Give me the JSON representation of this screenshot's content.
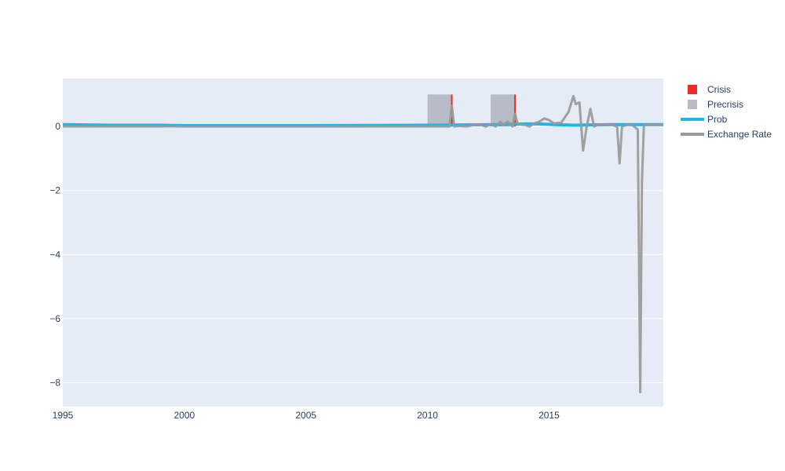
{
  "chart_data": {
    "type": "line",
    "title": "",
    "xlabel": "",
    "ylabel": "",
    "xlim": [
      1995.0,
      2019.7
    ],
    "ylim": [
      -8.75,
      1.5
    ],
    "x_ticks": [
      1995,
      2000,
      2005,
      2010,
      2015
    ],
    "y_ticks": [
      0,
      -2,
      -4,
      -6,
      -8
    ],
    "grid": true,
    "legend_position": "top-right",
    "colors": {
      "plot_background": "#e5ecf6",
      "grid": "#ffffff",
      "crisis": "#ee2a2a",
      "precrisis": "#b7bcc6",
      "prob": "#1eb5e8",
      "exchange_rate": "#999999",
      "tick_text": "#2a3f5f"
    },
    "legend": [
      {
        "label": "Crisis",
        "kind": "box",
        "series": "crisis"
      },
      {
        "label": "Precrisis",
        "kind": "box",
        "series": "precrisis"
      },
      {
        "label": "Prob",
        "kind": "line",
        "series": "prob"
      },
      {
        "label": "Exchange Rate",
        "kind": "line",
        "series": "exchange_rate"
      }
    ],
    "precrisis_periods": [
      {
        "start": 2010.0,
        "end": 2011.0,
        "value": 1.0
      },
      {
        "start": 2012.6,
        "end": 2013.6,
        "value": 1.0
      }
    ],
    "crisis_events": [
      {
        "x": 2011.0,
        "value": 1.0
      },
      {
        "x": 2013.6,
        "value": 1.0
      }
    ],
    "prob": {
      "x": [
        1995.0,
        1996.0,
        1997.0,
        1998.0,
        1999.0,
        2000.0,
        2005.0,
        2010.0,
        2013.0,
        2014.0,
        2014.6,
        2015.2,
        2016.0,
        2016.7,
        2017.5,
        2019.7
      ],
      "y": [
        0.06,
        0.05,
        0.04,
        0.04,
        0.04,
        0.03,
        0.03,
        0.04,
        0.06,
        0.08,
        0.08,
        0.06,
        0.04,
        0.05,
        0.06,
        0.06
      ]
    },
    "exchange_rate": {
      "x": [
        1995.0,
        1996.0,
        1997.0,
        1998.0,
        1999.0,
        1999.3,
        2000.0,
        2001.0,
        2003.0,
        2005.0,
        2007.0,
        2009.0,
        2010.0,
        2010.9,
        2011.0,
        2011.1,
        2011.3,
        2011.6,
        2011.9,
        2012.2,
        2012.4,
        2012.6,
        2012.8,
        2013.0,
        2013.1,
        2013.3,
        2013.5,
        2013.6,
        2013.7,
        2013.9,
        2014.0,
        2014.2,
        2014.4,
        2014.6,
        2014.8,
        2015.0,
        2015.2,
        2015.5,
        2015.8,
        2016.0,
        2016.1,
        2016.25,
        2016.4,
        2016.55,
        2016.7,
        2016.85,
        2017.0,
        2017.3,
        2017.6,
        2017.8,
        2017.9,
        2018.0,
        2018.2,
        2018.4,
        2018.5,
        2018.65,
        2018.75,
        2018.82,
        2018.9,
        2019.0,
        2019.3,
        2019.7
      ],
      "y": [
        0.0,
        0.0,
        0.0,
        0.0,
        0.0,
        0.01,
        0.0,
        0.0,
        0.0,
        0.0,
        0.0,
        0.0,
        0.0,
        0.0,
        0.65,
        0.0,
        0.02,
        0.0,
        0.05,
        0.05,
        0.0,
        0.07,
        0.0,
        0.15,
        0.05,
        0.15,
        0.0,
        0.4,
        0.1,
        0.05,
        0.05,
        0.0,
        0.1,
        0.15,
        0.25,
        0.2,
        0.1,
        0.12,
        0.45,
        0.95,
        0.7,
        0.75,
        -0.75,
        0.0,
        0.55,
        0.0,
        0.05,
        0.05,
        0.05,
        0.0,
        -1.15,
        0.0,
        0.05,
        0.05,
        0.0,
        -0.1,
        -8.3,
        -1.75,
        0.05,
        0.05,
        0.05,
        0.05
      ]
    }
  }
}
